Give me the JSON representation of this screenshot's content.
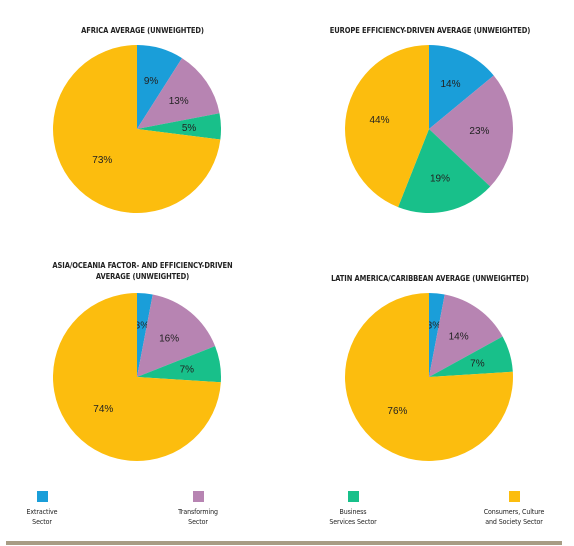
{
  "colors": {
    "extractive": "#1a9ed9",
    "transforming": "#b784b2",
    "business": "#18c08a",
    "consumer": "#fcbd0e"
  },
  "legend": [
    {
      "key": "extractive",
      "line1": "Extractive",
      "line2": "Sector"
    },
    {
      "key": "transforming",
      "line1": "Transforming",
      "line2": "Sector"
    },
    {
      "key": "business",
      "line1": "Business",
      "line2": "Services Sector"
    },
    {
      "key": "consumer",
      "line1": "Consumers, Culture",
      "line2": "and Society Sector"
    }
  ],
  "chart_data": [
    {
      "type": "pie",
      "title": "AFRICA AVERAGE (UNWEIGHTED)",
      "categories": [
        "Extractive Sector",
        "Transforming Sector",
        "Business Services Sector",
        "Consumers, Culture and Society Sector"
      ],
      "values": [
        9,
        13,
        5,
        73
      ],
      "labels": [
        "9%",
        "13%",
        "5%",
        "73%"
      ]
    },
    {
      "type": "pie",
      "title": "EUROPE EFFICIENCY-DRIVEN AVERAGE (UNWEIGHTED)",
      "categories": [
        "Extractive Sector",
        "Transforming Sector",
        "Business Services Sector",
        "Consumers, Culture and Society Sector"
      ],
      "values": [
        14,
        23,
        19,
        44
      ],
      "labels": [
        "14%",
        "23%",
        "19%",
        "44%"
      ]
    },
    {
      "type": "pie",
      "title": "ASIA/OCEANIA FACTOR- AND EFFICIENCY-DRIVEN AVERAGE (UNWEIGHTED)",
      "categories": [
        "Extractive Sector",
        "Transforming Sector",
        "Business Services Sector",
        "Consumers, Culture and Society Sector"
      ],
      "values": [
        3,
        16,
        7,
        74
      ],
      "labels": [
        "3%",
        "16%",
        "7%",
        "74%"
      ]
    },
    {
      "type": "pie",
      "title": "LATIN AMERICA/CARIBBEAN AVERAGE (UNWEIGHTED)",
      "categories": [
        "Extractive Sector",
        "Transforming Sector",
        "Business Services Sector",
        "Consumers, Culture and Society Sector"
      ],
      "values": [
        3,
        14,
        7,
        76
      ],
      "labels": [
        "3%",
        "14%",
        "7%",
        "76%"
      ]
    }
  ]
}
